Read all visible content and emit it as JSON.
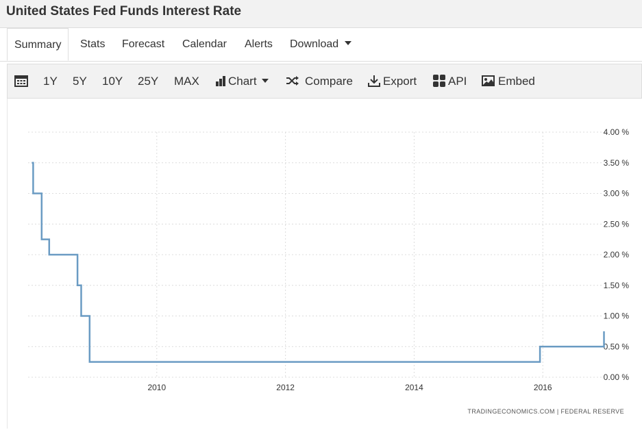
{
  "header": {
    "title": "United States Fed Funds Interest Rate"
  },
  "tabs": [
    {
      "label": "Summary",
      "active": true
    },
    {
      "label": "Stats"
    },
    {
      "label": "Forecast"
    },
    {
      "label": "Calendar"
    },
    {
      "label": "Alerts"
    },
    {
      "label": "Download",
      "dropdown": true
    }
  ],
  "toolbar": {
    "calendar_icon": "calendar-icon",
    "ranges": [
      "1Y",
      "5Y",
      "10Y",
      "25Y",
      "MAX"
    ],
    "chart_label": "Chart",
    "compare_label": "Compare",
    "export_label": "Export",
    "api_label": "API",
    "embed_label": "Embed"
  },
  "colors": {
    "line": "#6a9bc3",
    "grid": "#dcdcdc",
    "toolbar_bg": "#f2f2f2",
    "text": "#333333"
  },
  "chart_data": {
    "type": "line",
    "step": true,
    "series": [
      {
        "points": [
          [
            "2008-01-22",
            3.5
          ],
          [
            "2008-01-30",
            3.0
          ],
          [
            "2008-03-18",
            2.25
          ],
          [
            "2008-04-30",
            2.0
          ],
          [
            "2008-10-08",
            1.5
          ],
          [
            "2008-10-29",
            1.0
          ],
          [
            "2008-12-16",
            0.25
          ],
          [
            "2015-12-16",
            0.5
          ],
          [
            "2016-12-14",
            0.75
          ]
        ]
      }
    ],
    "x_ticks": [
      "2010",
      "2012",
      "2014",
      "2016"
    ],
    "y_ticks": [
      "0.00 %",
      "0.50 %",
      "1.00 %",
      "1.50 %",
      "2.00 %",
      "2.50 %",
      "3.00 %",
      "3.50 %",
      "4.00 %"
    ],
    "ylim": [
      0,
      4
    ],
    "xlim": [
      "2008-01-01",
      "2016-12-31"
    ],
    "grid": "dotted",
    "y_axis_position": "right",
    "source": "TRADINGECONOMICS.COM | FEDERAL RESERVE"
  }
}
